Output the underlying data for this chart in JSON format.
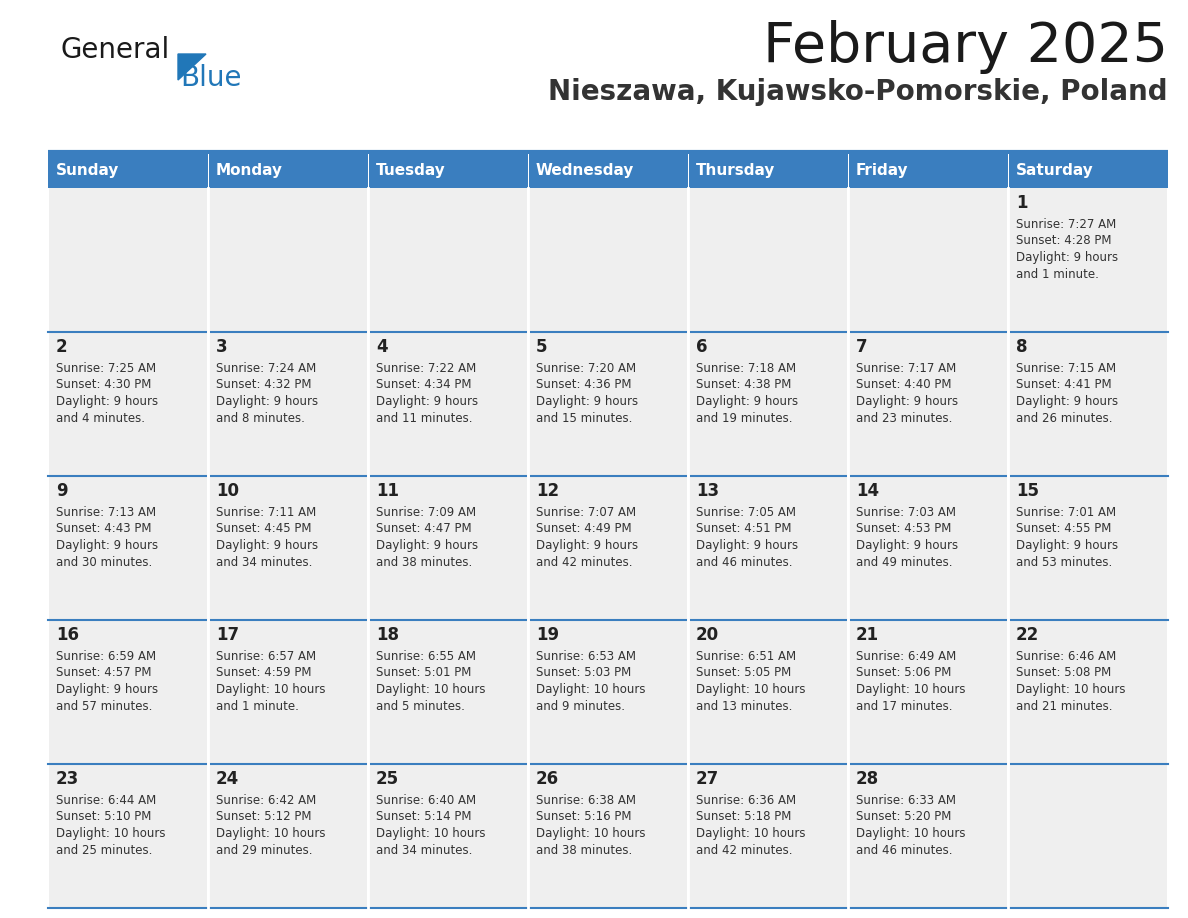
{
  "title": "February 2025",
  "subtitle": "Nieszawa, Kujawsko-Pomorskie, Poland",
  "days_of_week": [
    "Sunday",
    "Monday",
    "Tuesday",
    "Wednesday",
    "Thursday",
    "Friday",
    "Saturday"
  ],
  "header_bg": "#3a7ebf",
  "header_text_color": "#ffffff",
  "cell_bg_light": "#efefef",
  "border_color": "#3a7ebf",
  "day_num_color": "#222222",
  "cell_text_color": "#333333",
  "title_color": "#1a1a1a",
  "subtitle_color": "#333333",
  "calendar": [
    [
      null,
      null,
      null,
      null,
      null,
      null,
      {
        "day": 1,
        "sunrise": "7:27 AM",
        "sunset": "4:28 PM",
        "daylight": "9 hours and 1 minute."
      }
    ],
    [
      {
        "day": 2,
        "sunrise": "7:25 AM",
        "sunset": "4:30 PM",
        "daylight": "9 hours and 4 minutes."
      },
      {
        "day": 3,
        "sunrise": "7:24 AM",
        "sunset": "4:32 PM",
        "daylight": "9 hours and 8 minutes."
      },
      {
        "day": 4,
        "sunrise": "7:22 AM",
        "sunset": "4:34 PM",
        "daylight": "9 hours and 11 minutes."
      },
      {
        "day": 5,
        "sunrise": "7:20 AM",
        "sunset": "4:36 PM",
        "daylight": "9 hours and 15 minutes."
      },
      {
        "day": 6,
        "sunrise": "7:18 AM",
        "sunset": "4:38 PM",
        "daylight": "9 hours and 19 minutes."
      },
      {
        "day": 7,
        "sunrise": "7:17 AM",
        "sunset": "4:40 PM",
        "daylight": "9 hours and 23 minutes."
      },
      {
        "day": 8,
        "sunrise": "7:15 AM",
        "sunset": "4:41 PM",
        "daylight": "9 hours and 26 minutes."
      }
    ],
    [
      {
        "day": 9,
        "sunrise": "7:13 AM",
        "sunset": "4:43 PM",
        "daylight": "9 hours and 30 minutes."
      },
      {
        "day": 10,
        "sunrise": "7:11 AM",
        "sunset": "4:45 PM",
        "daylight": "9 hours and 34 minutes."
      },
      {
        "day": 11,
        "sunrise": "7:09 AM",
        "sunset": "4:47 PM",
        "daylight": "9 hours and 38 minutes."
      },
      {
        "day": 12,
        "sunrise": "7:07 AM",
        "sunset": "4:49 PM",
        "daylight": "9 hours and 42 minutes."
      },
      {
        "day": 13,
        "sunrise": "7:05 AM",
        "sunset": "4:51 PM",
        "daylight": "9 hours and 46 minutes."
      },
      {
        "day": 14,
        "sunrise": "7:03 AM",
        "sunset": "4:53 PM",
        "daylight": "9 hours and 49 minutes."
      },
      {
        "day": 15,
        "sunrise": "7:01 AM",
        "sunset": "4:55 PM",
        "daylight": "9 hours and 53 minutes."
      }
    ],
    [
      {
        "day": 16,
        "sunrise": "6:59 AM",
        "sunset": "4:57 PM",
        "daylight": "9 hours and 57 minutes."
      },
      {
        "day": 17,
        "sunrise": "6:57 AM",
        "sunset": "4:59 PM",
        "daylight": "10 hours and 1 minute."
      },
      {
        "day": 18,
        "sunrise": "6:55 AM",
        "sunset": "5:01 PM",
        "daylight": "10 hours and 5 minutes."
      },
      {
        "day": 19,
        "sunrise": "6:53 AM",
        "sunset": "5:03 PM",
        "daylight": "10 hours and 9 minutes."
      },
      {
        "day": 20,
        "sunrise": "6:51 AM",
        "sunset": "5:05 PM",
        "daylight": "10 hours and 13 minutes."
      },
      {
        "day": 21,
        "sunrise": "6:49 AM",
        "sunset": "5:06 PM",
        "daylight": "10 hours and 17 minutes."
      },
      {
        "day": 22,
        "sunrise": "6:46 AM",
        "sunset": "5:08 PM",
        "daylight": "10 hours and 21 minutes."
      }
    ],
    [
      {
        "day": 23,
        "sunrise": "6:44 AM",
        "sunset": "5:10 PM",
        "daylight": "10 hours and 25 minutes."
      },
      {
        "day": 24,
        "sunrise": "6:42 AM",
        "sunset": "5:12 PM",
        "daylight": "10 hours and 29 minutes."
      },
      {
        "day": 25,
        "sunrise": "6:40 AM",
        "sunset": "5:14 PM",
        "daylight": "10 hours and 34 minutes."
      },
      {
        "day": 26,
        "sunrise": "6:38 AM",
        "sunset": "5:16 PM",
        "daylight": "10 hours and 38 minutes."
      },
      {
        "day": 27,
        "sunrise": "6:36 AM",
        "sunset": "5:18 PM",
        "daylight": "10 hours and 42 minutes."
      },
      {
        "day": 28,
        "sunrise": "6:33 AM",
        "sunset": "5:20 PM",
        "daylight": "10 hours and 46 minutes."
      },
      null
    ]
  ],
  "logo_general_color": "#1a1a1a",
  "logo_blue_color": "#2177b8",
  "logo_triangle_color": "#2177b8",
  "fig_width": 11.88,
  "fig_height": 9.18,
  "dpi": 100
}
